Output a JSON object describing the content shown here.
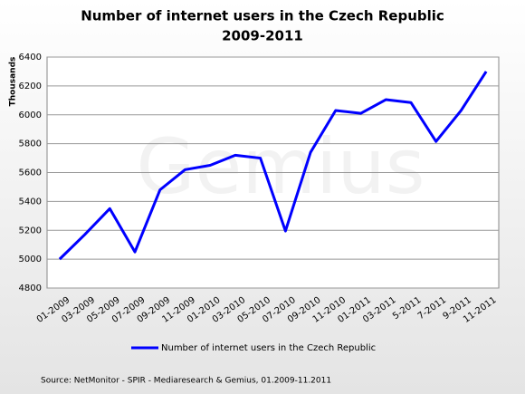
{
  "chart_data": {
    "type": "line",
    "title": "Number of internet users in the Czech Republic",
    "subtitle": "2009-2011",
    "y_label": "Thousands",
    "watermark": "Gemius",
    "source": "Source:  NetMonitor - SPIR - Mediaresearch  & Gemius, 01.2009-11.2011",
    "categories": [
      "01-2009",
      "03-2009",
      "05-2009",
      "07-2009",
      "09-2009",
      "11-2009",
      "01-2010",
      "03-2010",
      "05-2010",
      "07-2010",
      "09-2010",
      "11-2010",
      "01-2011",
      "03-2011",
      "5-2011",
      "7-2011",
      "9-2011",
      "11-2011"
    ],
    "series": [
      {
        "name": "Number of internet users in the Czech Republic",
        "color": "#0000ff",
        "values": [
          5000,
          5170,
          5350,
          5050,
          5480,
          5620,
          5650,
          5720,
          5700,
          5195,
          5740,
          6030,
          6010,
          6105,
          6085,
          5815,
          6030,
          6300
        ]
      }
    ],
    "ylim": [
      4800,
      6400
    ],
    "yticks": [
      4800,
      5000,
      5200,
      5400,
      5600,
      5800,
      6000,
      6200,
      6400
    ],
    "grid": true,
    "legend": "bottom"
  }
}
